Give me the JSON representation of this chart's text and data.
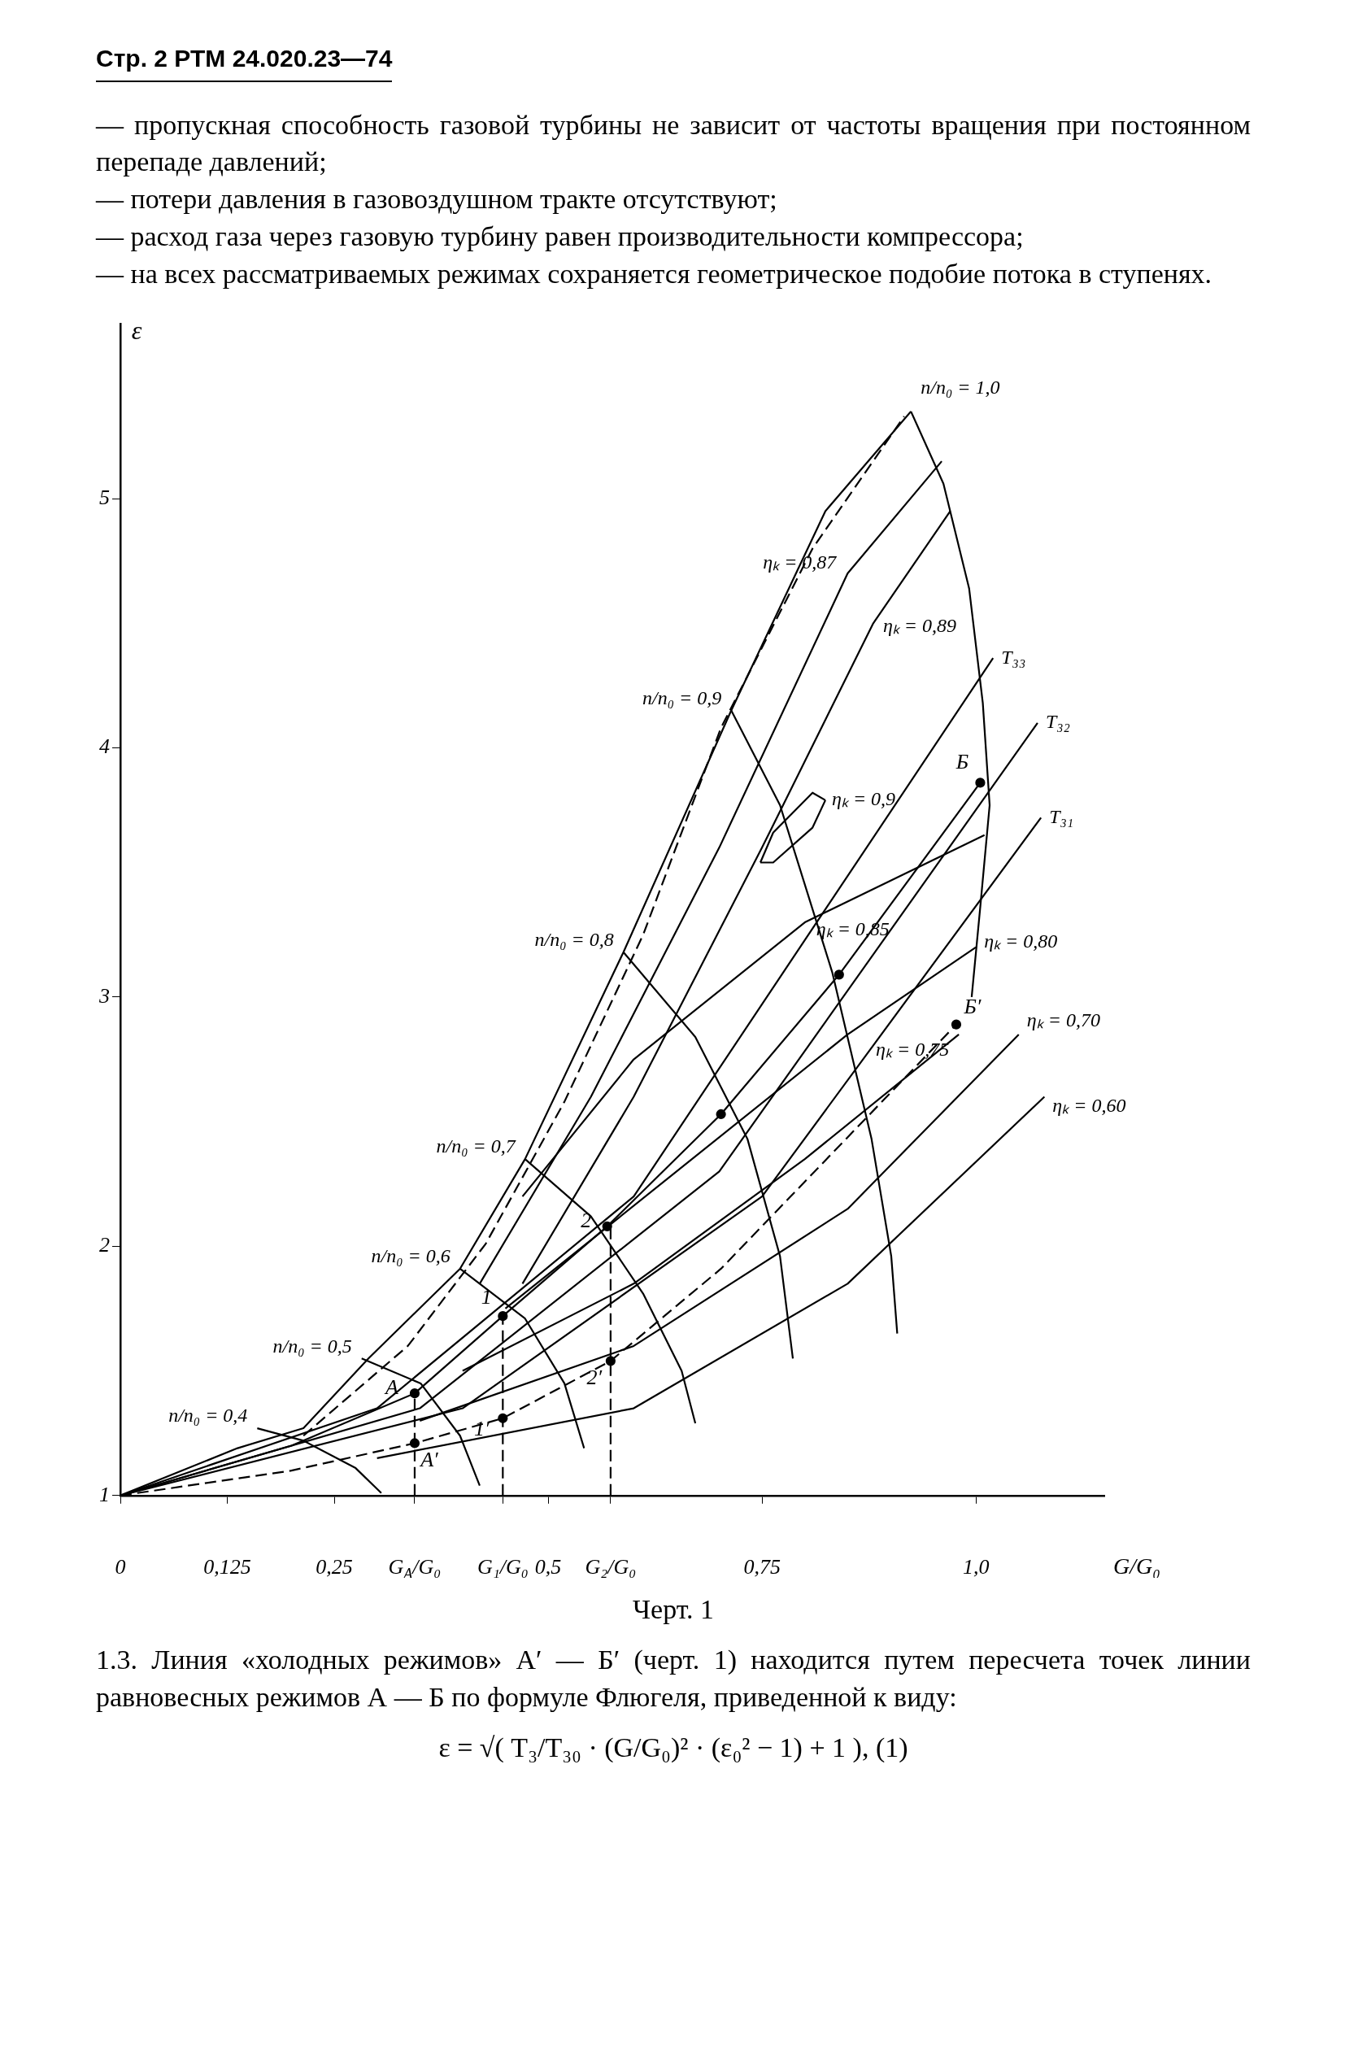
{
  "chart_data": {
    "type": "line",
    "title": "Стр. 2   РТМ 24.020.23—74",
    "subtitle": "— пропускная способность газовой турбины не зависит от частоты вращения при постоянном перепаде давлений;\n— потери давления в газовоздушном тракте отсутствуют;\n— расход газа через газовую турбину равен производительности компрессора;\n— на всех рассматриваемых режимах сохраняется геометрическое подобие потока в ступенях.",
    "xlabel": "G/G₀",
    "ylabel": "ε",
    "xlim": [
      0,
      1.15
    ],
    "ylim": [
      1,
      5.7
    ],
    "xticks": [
      {
        "value": 0,
        "label": "0"
      },
      {
        "value": 0.125,
        "label": "0,125"
      },
      {
        "value": 0.25,
        "label": "0,25"
      },
      {
        "value": 0.344,
        "label": "G$_{A}$/G₀"
      },
      {
        "value": 0.447,
        "label": "G₁/G₀"
      },
      {
        "value": 0.5,
        "label": "0,5"
      },
      {
        "value": 0.573,
        "label": "G₂/G₀"
      },
      {
        "value": 0.75,
        "label": "0,75"
      },
      {
        "value": 1.0,
        "label": "1,0"
      }
    ],
    "yticks": [
      1,
      2,
      3,
      4,
      5
    ],
    "series": [
      {
        "type": "line",
        "color": "#000000",
        "marker": "none",
        "line_style": "solid",
        "x": [
          0,
          0.137,
          0.214,
          0.29,
          0.397,
          0.473,
          0.588,
          0.714,
          0.824,
          0.924
        ],
        "values": [
          1,
          1.19,
          1.27,
          1.55,
          1.91,
          2.35,
          3.18,
          4.15,
          4.95,
          5.35
        ]
      },
      {
        "type": "line",
        "color": "#000000",
        "marker": "none",
        "line_style": "dashed",
        "x": [
          0.214,
          0.336,
          0.427,
          0.519,
          0.611,
          0.702,
          0.809,
          0.916
        ],
        "values": [
          1.24,
          1.6,
          2.01,
          2.58,
          3.25,
          4.08,
          4.8,
          5.33
        ]
      },
      {
        "type": "line",
        "name": "n/n₀ = 1,0",
        "color": "#000000",
        "marker": "none",
        "line_style": "solid",
        "x": [
          0.924,
          0.962,
          0.992,
          1.008,
          1.016,
          1.005,
          0.995
        ],
        "values": [
          5.35,
          5.06,
          4.64,
          4.18,
          3.77,
          3.36,
          3.0
        ]
      },
      {
        "type": "line",
        "name": "n/n₀ = 0,9",
        "color": "#000000",
        "marker": "none",
        "line_style": "solid",
        "x": [
          0.714,
          0.771,
          0.832,
          0.878,
          0.901,
          0.908
        ],
        "values": [
          4.15,
          3.77,
          3.1,
          2.43,
          1.96,
          1.65
        ]
      },
      {
        "type": "line",
        "name": "n/n₀ = 0,8",
        "color": "#000000",
        "marker": "none",
        "line_style": "solid",
        "x": [
          0.588,
          0.672,
          0.733,
          0.771,
          0.786
        ],
        "values": [
          3.18,
          2.84,
          2.43,
          1.96,
          1.55
        ]
      },
      {
        "type": "line",
        "name": "n/n₀ = 0,7",
        "color": "#000000",
        "marker": "none",
        "line_style": "solid",
        "x": [
          0.473,
          0.55,
          0.611,
          0.656,
          0.672
        ],
        "values": [
          2.35,
          2.12,
          1.81,
          1.5,
          1.29
        ]
      },
      {
        "type": "line",
        "name": "n/n₀ = 0,6",
        "color": "#000000",
        "marker": "none",
        "line_style": "solid",
        "x": [
          0.397,
          0.473,
          0.519,
          0.542
        ],
        "values": [
          1.91,
          1.71,
          1.45,
          1.19
        ]
      },
      {
        "type": "line",
        "name": "n/n₀ = 0,5",
        "color": "#000000",
        "marker": "none",
        "line_style": "solid",
        "x": [
          0.282,
          0.351,
          0.397,
          0.42
        ],
        "values": [
          1.55,
          1.45,
          1.24,
          1.04
        ]
      },
      {
        "type": "line",
        "name": "n/n₀ = 0,4",
        "color": "#000000",
        "marker": "none",
        "line_style": "solid",
        "x": [
          0.16,
          0.214,
          0.275,
          0.305
        ],
        "values": [
          1.27,
          1.22,
          1.11,
          1.01
        ]
      },
      {
        "type": "line",
        "name": "T₃₃",
        "color": "#000000",
        "marker": "none",
        "line_style": "solid",
        "x": [
          0,
          0.3,
          0.6,
          1.02
        ],
        "values": [
          1,
          1.35,
          2.2,
          4.36
        ]
      },
      {
        "type": "line",
        "name": "T₃₂",
        "color": "#000000",
        "marker": "none",
        "line_style": "solid",
        "x": [
          0,
          0.35,
          0.7,
          1.072
        ],
        "values": [
          1,
          1.35,
          2.3,
          4.1
        ]
      },
      {
        "type": "line",
        "name": "T₃₁",
        "color": "#000000",
        "marker": "none",
        "line_style": "solid",
        "x": [
          0,
          0.4,
          0.75,
          1.076
        ],
        "values": [
          1,
          1.35,
          2.2,
          3.72
        ]
      },
      {
        "type": "line",
        "name": "ηₖ = 0,87",
        "color": "#000000",
        "marker": "none",
        "line_style": "solid",
        "x": [
          0.42,
          0.55,
          0.7,
          0.85,
          0.96
        ],
        "values": [
          1.85,
          2.6,
          3.6,
          4.7,
          5.15
        ]
      },
      {
        "type": "line",
        "name": "ηₖ = 0,89",
        "color": "#000000",
        "marker": "none",
        "line_style": "solid",
        "x": [
          0.47,
          0.6,
          0.75,
          0.88,
          0.97
        ],
        "values": [
          1.85,
          2.6,
          3.6,
          4.5,
          4.95
        ]
      },
      {
        "type": "line",
        "name": "ηₖ = 0,9",
        "color": "#000000",
        "marker": "none",
        "line_style": "solid",
        "x": [
          0.748,
          0.763,
          0.809,
          0.824
        ],
        "values": [
          3.54,
          3.66,
          3.82,
          3.79
        ]
      },
      {
        "type": "line",
        "color": "#000000",
        "marker": "none",
        "line_style": "solid",
        "x": [
          0.748,
          0.763,
          0.809,
          0.824
        ],
        "values": [
          3.54,
          3.54,
          3.68,
          3.79
        ]
      },
      {
        "type": "line",
        "name": "ηₖ = 0,85",
        "color": "#000000",
        "marker": "none",
        "line_style": "solid",
        "x": [
          0.47,
          0.6,
          0.8,
          1.01
        ],
        "values": [
          2.2,
          2.75,
          3.3,
          3.65
        ]
      },
      {
        "type": "line",
        "name": "ηₖ = 0,80",
        "color": "#000000",
        "marker": "none",
        "line_style": "solid",
        "x": [
          0.45,
          0.65,
          0.85,
          1.0
        ],
        "values": [
          1.75,
          2.3,
          2.85,
          3.2
        ]
      },
      {
        "type": "line",
        "name": "ηₖ = 0,75",
        "color": "#000000",
        "marker": "none",
        "line_style": "solid",
        "x": [
          0.4,
          0.6,
          0.8,
          0.98
        ],
        "values": [
          1.5,
          1.85,
          2.35,
          2.85
        ]
      },
      {
        "type": "line",
        "name": "ηₖ = 0,70",
        "color": "#000000",
        "marker": "none",
        "line_style": "solid",
        "x": [
          0.35,
          0.6,
          0.85,
          1.05
        ],
        "values": [
          1.3,
          1.6,
          2.15,
          2.85
        ]
      },
      {
        "type": "line",
        "name": "ηₖ = 0,60",
        "color": "#000000",
        "marker": "none",
        "line_style": "solid",
        "x": [
          0.3,
          0.6,
          0.85,
          1.08
        ],
        "values": [
          1.15,
          1.35,
          1.85,
          2.6
        ]
      },
      {
        "type": "line",
        "color": "#000000",
        "marker": "none",
        "line_style": "solid",
        "x": [
          0,
          0.2,
          0.344,
          0.447,
          0.569,
          0.702,
          0.84,
          1.005
        ],
        "values": [
          1,
          1.2,
          1.41,
          1.72,
          2.08,
          2.53,
          3.09,
          3.86
        ]
      },
      {
        "type": "line",
        "color": "#000000",
        "marker": "none",
        "line_style": "dashed",
        "x": [
          0,
          0.2,
          0.344,
          0.447,
          0.573,
          0.702,
          0.977
        ],
        "values": [
          1,
          1.1,
          1.21,
          1.31,
          1.54,
          1.91,
          2.89
        ]
      },
      {
        "type": "scatter",
        "color": "#000000",
        "marker": "circle",
        "x": [
          0.344,
          0.447,
          0.569,
          0.702,
          0.84,
          1.005,
          0.344,
          0.447,
          0.573,
          0.977
        ],
        "values": [
          1.41,
          1.72,
          2.08,
          2.53,
          3.09,
          3.86,
          1.21,
          1.31,
          1.54,
          2.89
        ]
      },
      {
        "type": "line",
        "color": "#000000",
        "marker": "none",
        "line_style": "dashed",
        "x": [
          0.344,
          0.344
        ],
        "values": [
          1,
          1.41
        ]
      },
      {
        "type": "line",
        "color": "#000000",
        "marker": "none",
        "line_style": "dashed",
        "x": [
          0.447,
          0.447
        ],
        "values": [
          1,
          1.72
        ]
      },
      {
        "type": "line",
        "color": "#000000",
        "marker": "none",
        "line_style": "dashed",
        "x": [
          0.573,
          0.573
        ],
        "values": [
          1,
          2.08
        ]
      }
    ],
    "annotations": [
      {
        "text": "А",
        "x": 0.344,
        "y": 1.41
      },
      {
        "text": "1",
        "x": 0.447,
        "y": 1.72
      },
      {
        "text": "2",
        "x": 0.569,
        "y": 2.08
      },
      {
        "text": "Б",
        "x": 1.005,
        "y": 3.86
      },
      {
        "text": "А′",
        "x": 0.344,
        "y": 1.21
      },
      {
        "text": "1′",
        "x": 0.447,
        "y": 1.31
      },
      {
        "text": "2′",
        "x": 0.573,
        "y": 1.54
      },
      {
        "text": "Б′",
        "x": 0.977,
        "y": 2.89
      },
      "Черт. 1",
      "1.3. Линия «холодных режимов» А′ — Б′ (черт. 1) находится путем пересчета точек линии равновесных режимов А — Б по формуле Флюгеля, приведенной к виду:",
      "ε = √( T₃/T₃₀ · (G/G₀)² · (ε₀² − 1) + 1 ),        (1)"
    ]
  }
}
